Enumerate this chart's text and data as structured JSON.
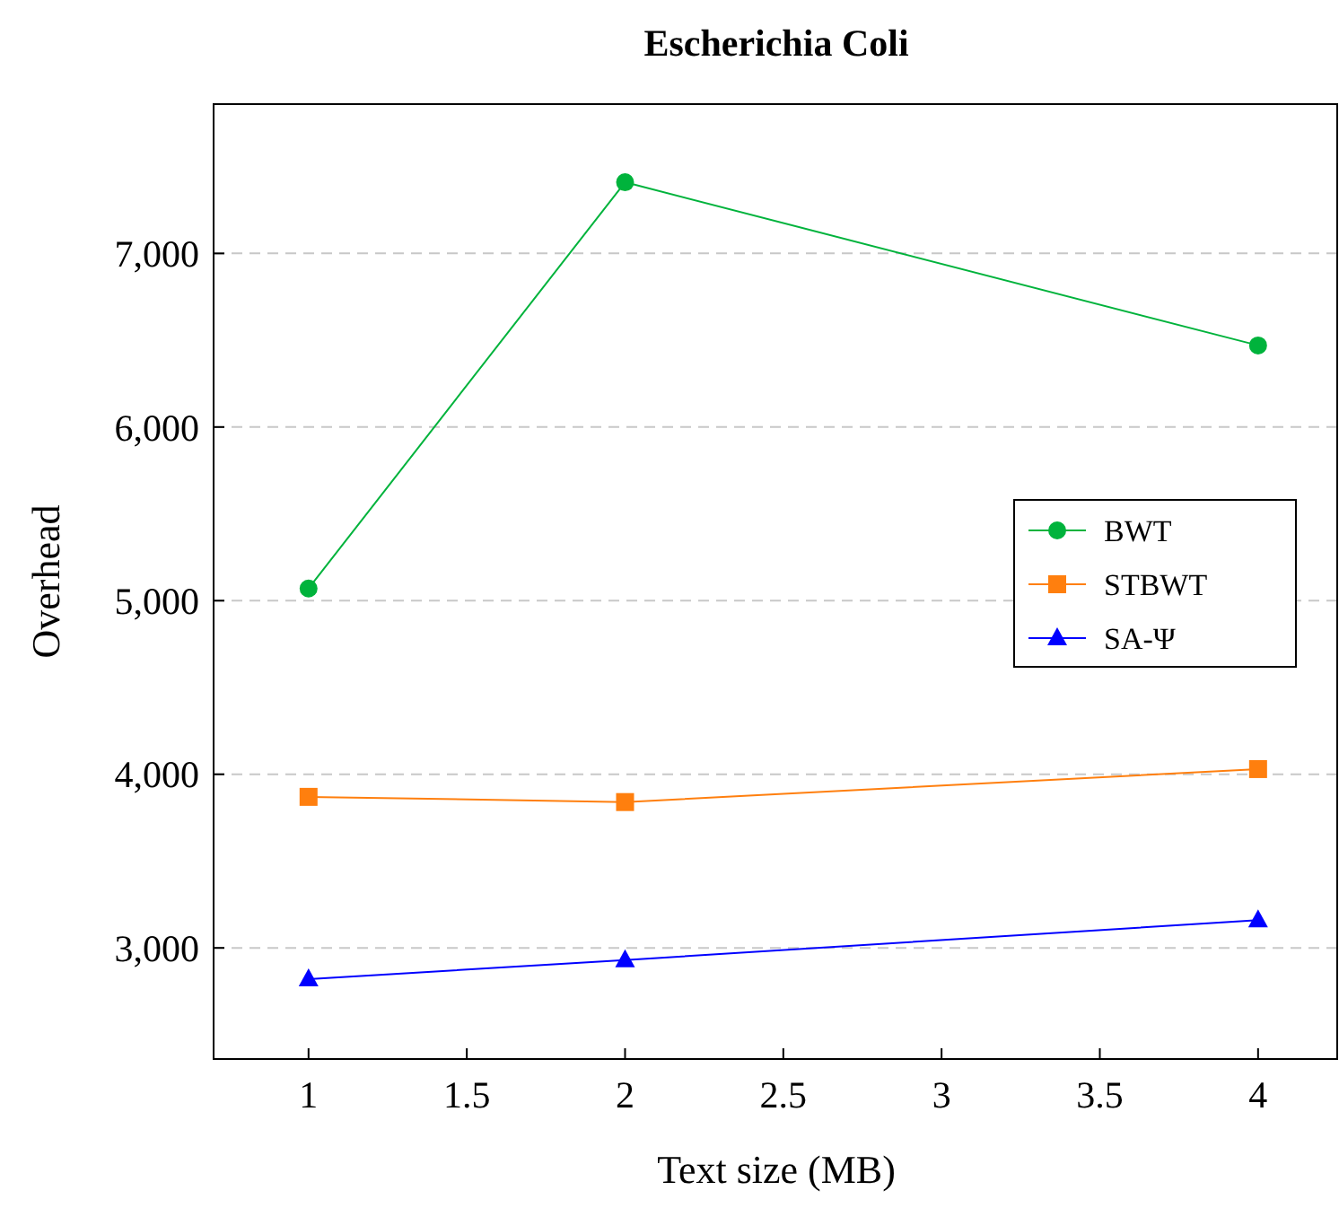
{
  "chart_data": {
    "type": "line",
    "title": "Escherichia Coli",
    "xlabel": "Text size (MB)",
    "ylabel": "Overhead",
    "x": [
      1,
      2,
      4
    ],
    "series": [
      {
        "name": "BWT",
        "color": "#00b33c",
        "marker": "circle",
        "values": [
          5070,
          7410,
          6470
        ]
      },
      {
        "name": "STBWT",
        "color": "#ff7f0e",
        "marker": "square",
        "values": [
          3870,
          3840,
          4030
        ]
      },
      {
        "name": "SA-Ψ",
        "color": "#0000ff",
        "marker": "triangle",
        "values": [
          2820,
          2930,
          3160
        ]
      }
    ],
    "xlim": [
      0.7,
      4.25
    ],
    "xticks": [
      1,
      1.5,
      2,
      2.5,
      3,
      3.5,
      4
    ],
    "ylim": [
      2360,
      7860
    ],
    "yticks": [
      {
        "value": 3000,
        "label": "3,000"
      },
      {
        "value": 4000,
        "label": "4,000"
      },
      {
        "value": 5000,
        "label": "5,000"
      },
      {
        "value": 6000,
        "label": "6,000"
      },
      {
        "value": 7000,
        "label": "7,000"
      }
    ],
    "grid": "y",
    "legend": "right",
    "line_style": "solid"
  }
}
